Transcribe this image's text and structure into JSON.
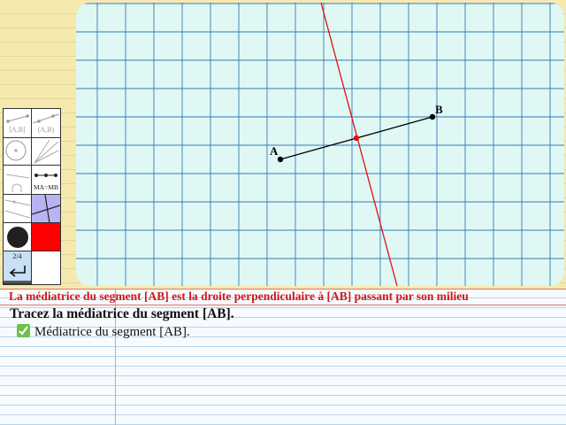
{
  "definition": "La médiatrice du segment [AB] est la droite perpendiculaire à [AB] passant par son milieu",
  "instruction": "Tracez la médiatrice du segment [AB].",
  "task": {
    "label": "Médiatrice du segment [AB].",
    "status_icon": "checkmark-icon",
    "status_color": "#6cc24a"
  },
  "figure": {
    "point_a": "A",
    "point_b": "B",
    "segment_color": "#000000",
    "bisector_color": "#e01010",
    "grid_color": "#3a78b8",
    "background_color": "#dff8f4"
  },
  "palette": {
    "segment_tool_label": "[A,B]",
    "line_tool_label": "(A,B)",
    "equal_length_label": "MA=MB",
    "page_indicator": "2/4",
    "undo_icon": "undo-arrow-icon",
    "colors": [
      "#231f20",
      "#ff0000",
      "#b8b4f2",
      "#ffffff"
    ]
  }
}
